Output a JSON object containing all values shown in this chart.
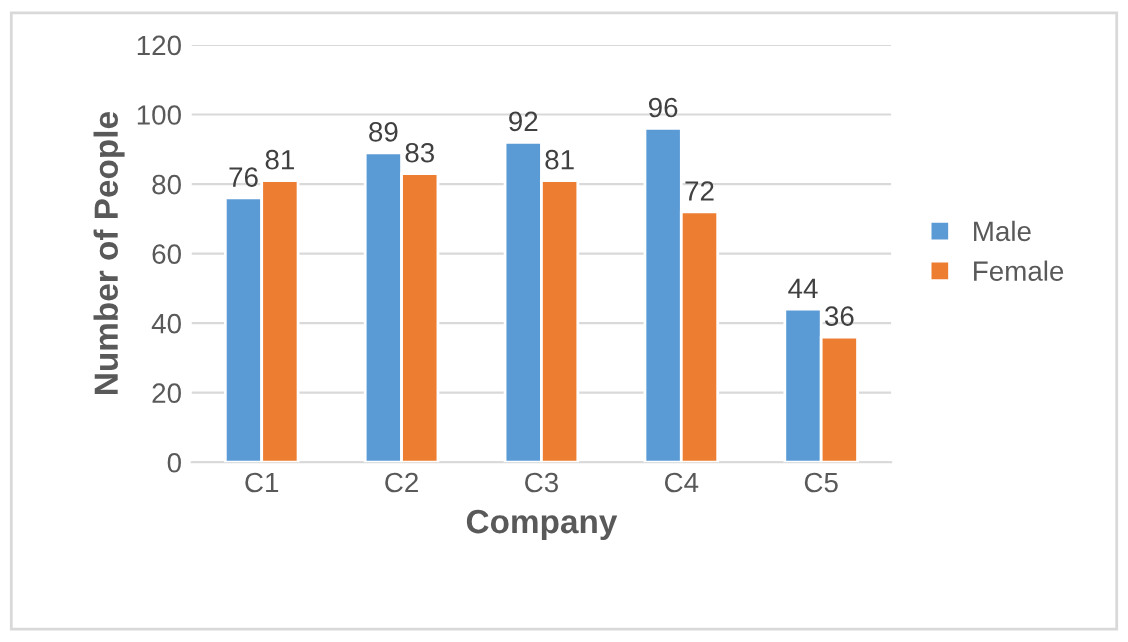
{
  "chart_data": {
    "type": "bar",
    "xlabel": "Company",
    "ylabel": "Number of People",
    "categories": [
      "C1",
      "C2",
      "C3",
      "C4",
      "C5"
    ],
    "series": [
      {
        "name": "Male",
        "color": "#5b9bd5",
        "values": [
          76,
          89,
          92,
          96,
          44
        ]
      },
      {
        "name": "Female",
        "color": "#ed7d31",
        "values": [
          81,
          83,
          81,
          72,
          36
        ]
      }
    ],
    "ylim": [
      0,
      120
    ],
    "yticks": [
      0,
      20,
      40,
      60,
      80,
      100,
      120
    ],
    "grid": "y",
    "legend": "right",
    "data_labels": true
  }
}
